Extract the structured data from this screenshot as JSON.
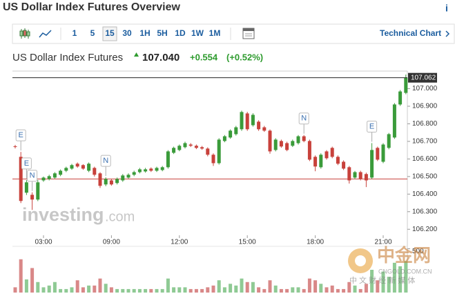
{
  "header": {
    "title": "US Dollar Index Futures Overview",
    "info": "i"
  },
  "toolbar": {
    "timeframes": [
      {
        "label": "1"
      },
      {
        "label": "5"
      },
      {
        "label": "15",
        "active": true
      },
      {
        "label": "30"
      },
      {
        "label": "1H"
      },
      {
        "label": "5H"
      },
      {
        "label": "1D"
      },
      {
        "label": "1W"
      },
      {
        "label": "1M"
      }
    ],
    "link": "Technical Chart"
  },
  "quote": {
    "name": "US Dollar Index Futures",
    "price": "107.040",
    "change": "+0.554",
    "change_pct": "(+0.52%)"
  },
  "watermarks": {
    "brand": "investing",
    "brand_suffix": ".com",
    "site": "中金网",
    "site_url": "CNGOLD.COM.CN",
    "slogan": "中 文 财 经 新 媒 体"
  },
  "chart_data": {
    "type": "candlestick",
    "categories": [
      null,
      null,
      null,
      null,
      null,
      "03:00",
      null,
      null,
      null,
      null,
      null,
      null,
      null,
      null,
      null,
      null,
      null,
      "09:00",
      null,
      null,
      null,
      null,
      null,
      null,
      null,
      null,
      null,
      null,
      null,
      "12:00",
      null,
      null,
      null,
      null,
      null,
      null,
      null,
      null,
      null,
      null,
      null,
      "15:00",
      null,
      null,
      null,
      null,
      null,
      null,
      null,
      null,
      null,
      null,
      null,
      "18:00",
      null,
      null,
      null,
      null,
      null,
      null,
      null,
      null,
      null,
      null,
      null,
      "21:00",
      null,
      null,
      null,
      null
    ],
    "open": [
      106.672,
      106.612,
      106.408,
      106.396,
      106.369,
      106.478,
      106.486,
      106.494,
      106.51,
      106.533,
      106.545,
      106.573,
      106.565,
      106.533,
      106.549,
      106.518,
      106.455,
      106.478,
      106.463,
      106.478,
      106.494,
      106.51,
      106.525,
      106.529,
      106.545,
      106.533,
      106.537,
      106.553,
      106.635,
      106.651,
      106.667,
      106.682,
      106.675,
      106.667,
      106.659,
      106.624,
      106.576,
      106.702,
      106.722,
      106.741,
      106.769,
      106.859,
      106.792,
      106.812,
      106.78,
      106.761,
      106.651,
      106.702,
      106.69,
      106.675,
      106.69,
      106.729,
      106.702,
      106.612,
      106.553,
      106.643,
      106.663,
      106.612,
      106.584,
      106.553,
      106.494,
      106.525,
      106.514,
      106.494,
      106.663,
      106.584,
      106.663,
      106.722,
      106.91,
      106.976
    ],
    "high": [
      106.68,
      106.64,
      106.48,
      106.41,
      106.48,
      106.5,
      106.51,
      106.525,
      106.54,
      106.556,
      106.572,
      106.58,
      106.57,
      106.58,
      106.556,
      106.525,
      106.495,
      106.486,
      106.494,
      106.514,
      106.518,
      106.533,
      106.549,
      106.549,
      106.552,
      106.556,
      106.56,
      106.65,
      106.67,
      106.682,
      106.698,
      106.69,
      106.682,
      106.674,
      106.666,
      106.632,
      106.718,
      106.736,
      106.768,
      106.788,
      106.875,
      106.868,
      106.86,
      106.82,
      106.788,
      106.768,
      106.718,
      106.71,
      106.698,
      106.71,
      106.736,
      106.736,
      106.71,
      106.62,
      106.632,
      106.65,
      106.67,
      106.62,
      106.592,
      106.56,
      106.532,
      106.533,
      106.522,
      106.69,
      106.67,
      106.69,
      106.748,
      106.918,
      106.992,
      107.08
    ],
    "low": [
      106.66,
      106.349,
      106.395,
      106.31,
      106.36,
      106.47,
      106.478,
      106.488,
      106.502,
      106.525,
      106.538,
      106.55,
      106.538,
      106.525,
      106.5,
      106.435,
      106.445,
      106.448,
      106.455,
      106.47,
      106.488,
      106.502,
      106.518,
      106.522,
      106.526,
      106.526,
      106.53,
      106.545,
      106.628,
      106.644,
      106.66,
      106.668,
      106.656,
      106.652,
      106.615,
      106.56,
      106.568,
      106.695,
      106.715,
      106.733,
      106.76,
      106.76,
      106.784,
      106.76,
      106.754,
      106.63,
      106.643,
      106.664,
      106.644,
      106.668,
      106.682,
      106.695,
      106.588,
      106.53,
      106.545,
      106.596,
      106.604,
      106.565,
      106.537,
      106.46,
      106.486,
      106.478,
      106.44,
      106.486,
      106.588,
      106.576,
      106.655,
      106.714,
      106.902,
      106.968
    ],
    "close": [
      106.668,
      106.361,
      106.467,
      106.369,
      106.467,
      106.494,
      106.502,
      106.518,
      106.533,
      106.549,
      106.565,
      106.557,
      106.545,
      106.573,
      106.51,
      106.447,
      106.486,
      106.455,
      106.486,
      106.506,
      106.51,
      106.525,
      106.541,
      106.541,
      106.533,
      106.549,
      106.553,
      106.643,
      106.663,
      106.675,
      106.69,
      106.675,
      106.663,
      106.659,
      106.624,
      106.576,
      106.71,
      106.729,
      106.761,
      106.78,
      106.867,
      106.769,
      106.851,
      106.769,
      106.761,
      106.643,
      106.71,
      106.671,
      106.651,
      106.702,
      106.729,
      106.702,
      106.596,
      106.557,
      106.624,
      106.604,
      106.612,
      106.573,
      106.545,
      106.478,
      106.525,
      106.486,
      106.478,
      106.651,
      106.596,
      106.682,
      106.741,
      106.91,
      106.984,
      107.062
    ],
    "events": [
      null,
      "E",
      "E",
      "N",
      null,
      null,
      null,
      null,
      null,
      null,
      null,
      null,
      null,
      null,
      null,
      null,
      "N",
      null,
      null,
      null,
      null,
      null,
      null,
      null,
      null,
      null,
      null,
      null,
      null,
      null,
      null,
      null,
      null,
      null,
      null,
      null,
      null,
      null,
      null,
      null,
      null,
      null,
      null,
      null,
      null,
      null,
      null,
      null,
      null,
      null,
      null,
      "N",
      null,
      null,
      null,
      null,
      null,
      null,
      null,
      null,
      null,
      null,
      null,
      "E",
      null,
      null,
      null,
      null,
      null,
      null
    ],
    "up_color": "#3a9b3a",
    "down_color": "#c8413b",
    "ylim": [
      106.15,
      107.1
    ],
    "yticks": [
      {
        "value": 106.2,
        "label": "106.200"
      },
      {
        "value": 106.3,
        "label": "106.300"
      },
      {
        "value": 106.4,
        "label": "106.400"
      },
      {
        "value": 106.5,
        "label": "106.500"
      },
      {
        "value": 106.6,
        "label": "106.600"
      },
      {
        "value": 106.7,
        "label": "106.700"
      },
      {
        "value": 106.8,
        "label": "106.800"
      },
      {
        "value": 106.9,
        "label": "106.900"
      },
      {
        "value": 107,
        "label": "107.000"
      }
    ],
    "last_price": 107.062,
    "prev_close": 106.486,
    "prev_close_color": "#c8413b",
    "volume": {
      "values": [
        60,
        380,
        150,
        280,
        120,
        60,
        80,
        120,
        40,
        40,
        60,
        140,
        60,
        80,
        80,
        160,
        100,
        60,
        40,
        40,
        40,
        40,
        40,
        40,
        40,
        40,
        40,
        160,
        60,
        60,
        60,
        40,
        40,
        40,
        60,
        80,
        140,
        60,
        100,
        80,
        160,
        120,
        120,
        60,
        40,
        140,
        80,
        40,
        40,
        60,
        60,
        40,
        160,
        140,
        100,
        60,
        80,
        40,
        40,
        120,
        80,
        40,
        100,
        260,
        140,
        240,
        180,
        340,
        300,
        360
      ],
      "ylim": [
        0,
        520
      ],
      "yticks": [
        500
      ],
      "up_color": "#8fca94",
      "down_color": "#d98888"
    }
  }
}
